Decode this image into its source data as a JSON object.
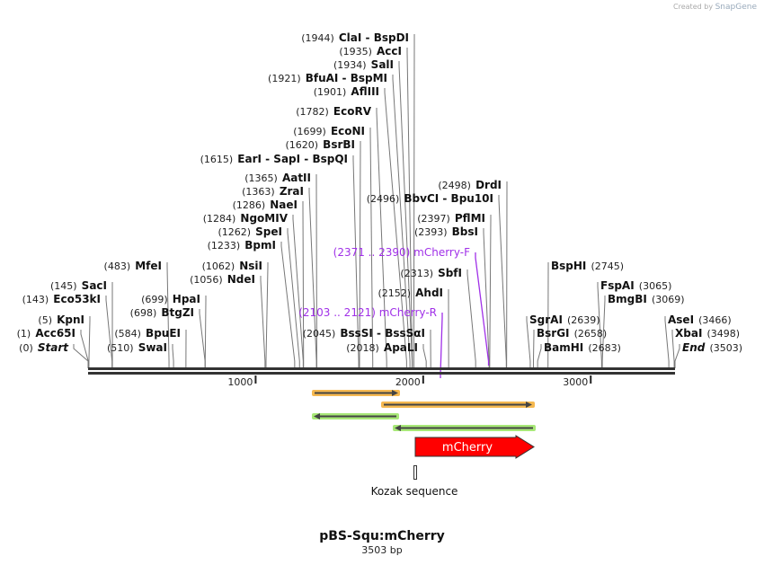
{
  "credit": {
    "prefix": "Created by",
    "brand": "SnapGene"
  },
  "map": {
    "name": "pBS-Squ:mCherry",
    "length_label": "3503 bp",
    "length": 3503
  },
  "ticks": [
    1000,
    2000,
    3000
  ],
  "enzymes": [
    {
      "name": "ClaI  -  BspDI",
      "pos": 1944
    },
    {
      "name": "AccI",
      "pos": 1935
    },
    {
      "name": "SalI",
      "pos": 1934
    },
    {
      "name": "BfuAI  -  BspMI",
      "pos": 1921
    },
    {
      "name": "AflIII",
      "pos": 1901
    },
    {
      "name": "EcoRV",
      "pos": 1782
    },
    {
      "name": "EcoNI",
      "pos": 1699
    },
    {
      "name": "BsrBI",
      "pos": 1620
    },
    {
      "name": "EarI  -  SapI  -  BspQI",
      "pos": 1615
    },
    {
      "name": "AatII",
      "pos": 1365
    },
    {
      "name": "ZraI",
      "pos": 1363
    },
    {
      "name": "NaeI",
      "pos": 1286
    },
    {
      "name": "NgoMIV",
      "pos": 1284
    },
    {
      "name": "SpeI",
      "pos": 1262
    },
    {
      "name": "BpmI",
      "pos": 1233
    },
    {
      "name": "NsiI",
      "pos": 1062
    },
    {
      "name": "NdeI",
      "pos": 1056
    },
    {
      "name": "MfeI",
      "pos": 483
    },
    {
      "name": "SacI",
      "pos": 145
    },
    {
      "name": "Eco53kI",
      "pos": 143
    },
    {
      "name": "HpaI",
      "pos": 699
    },
    {
      "name": "BtgZI",
      "pos": 698
    },
    {
      "name": "KpnI",
      "pos": 5
    },
    {
      "name": "Acc65I",
      "pos": 1
    },
    {
      "name": "Start",
      "pos": 0,
      "italic": true
    },
    {
      "name": "BpuEI",
      "pos": 584
    },
    {
      "name": "SwaI",
      "pos": 510
    },
    {
      "name": "BssSI  -  BssSαI",
      "pos": 2045
    },
    {
      "name": "ApaLI",
      "pos": 2018
    },
    {
      "name": "AhdI",
      "pos": 2152
    },
    {
      "name": "SbfI",
      "pos": 2313
    },
    {
      "name": "BbsI",
      "pos": 2393
    },
    {
      "name": "PflMI",
      "pos": 2397
    },
    {
      "name": "BbvCI  -  Bpu10I",
      "pos": 2496
    },
    {
      "name": "DrdI",
      "pos": 2498
    },
    {
      "name": "BspHI",
      "pos": 2745
    },
    {
      "name": "FspAI",
      "pos": 3065
    },
    {
      "name": "BmgBI",
      "pos": 3069
    },
    {
      "name": "SgrAI",
      "pos": 2639
    },
    {
      "name": "BsrGI",
      "pos": 2658
    },
    {
      "name": "BamHI",
      "pos": 2683
    },
    {
      "name": "AseI",
      "pos": 3466
    },
    {
      "name": "XbaI",
      "pos": 3498
    },
    {
      "name": "End",
      "pos": 3503,
      "italic": true
    }
  ],
  "primers": [
    {
      "name": "mCherry-F",
      "range": "(2371 .. 2390)",
      "start": 2371,
      "end": 2390,
      "direction": "forward"
    },
    {
      "name": "mCherry-R",
      "range": "(2103 .. 2121)",
      "start": 2103,
      "end": 2121,
      "direction": "reverse"
    }
  ],
  "features": [
    {
      "name": "mCherry",
      "color": "#ff0000",
      "direction": "forward"
    },
    {
      "name": "Kozak sequence"
    }
  ],
  "colors": {
    "primer": "#a030e8",
    "orange": "#f5b850",
    "green": "#a8e878",
    "backbone": "#333333"
  }
}
